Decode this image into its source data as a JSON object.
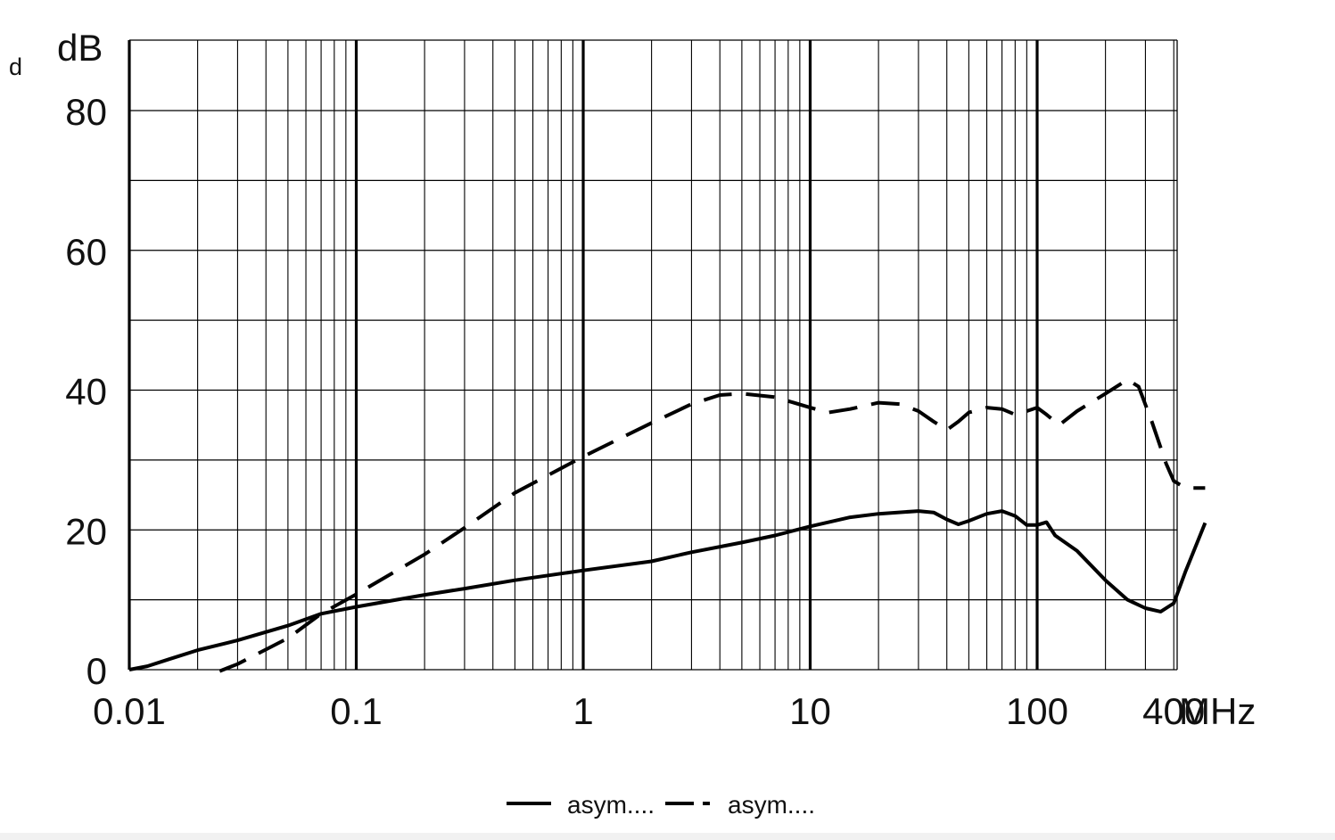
{
  "chart_data": {
    "type": "line",
    "corner_label": "d",
    "ylabel": "dB",
    "xlabel": "MHz",
    "x_scale": "log",
    "xlim": [
      0.01,
      600
    ],
    "ylim": [
      0,
      90
    ],
    "grid": true,
    "legend_placement": "bottom-center",
    "x_tick_labels": [
      {
        "value": 0.01,
        "label": "0.01"
      },
      {
        "value": 0.1,
        "label": "0.1"
      },
      {
        "value": 1,
        "label": "1"
      },
      {
        "value": 10,
        "label": "10"
      },
      {
        "value": 100,
        "label": "100"
      },
      {
        "value": 400,
        "label": "400"
      }
    ],
    "y_tick_labels": [
      {
        "value": 0,
        "label": "0"
      },
      {
        "value": 20,
        "label": "20"
      },
      {
        "value": 40,
        "label": "40"
      },
      {
        "value": 60,
        "label": "60"
      },
      {
        "value": 80,
        "label": "80"
      }
    ],
    "series": [
      {
        "name": "asym....",
        "style": "solid",
        "color": "#000000",
        "points": [
          [
            0.01,
            0
          ],
          [
            0.012,
            0.5
          ],
          [
            0.015,
            1.5
          ],
          [
            0.02,
            2.8
          ],
          [
            0.03,
            4.2
          ],
          [
            0.05,
            6.3
          ],
          [
            0.07,
            8.0
          ],
          [
            0.1,
            9.0
          ],
          [
            0.2,
            10.7
          ],
          [
            0.3,
            11.6
          ],
          [
            0.5,
            12.8
          ],
          [
            1,
            14.2
          ],
          [
            2,
            15.5
          ],
          [
            3,
            16.8
          ],
          [
            5,
            18.2
          ],
          [
            7,
            19.2
          ],
          [
            10,
            20.5
          ],
          [
            15,
            21.8
          ],
          [
            20,
            22.3
          ],
          [
            30,
            22.7
          ],
          [
            35,
            22.5
          ],
          [
            40,
            21.5
          ],
          [
            45,
            20.8
          ],
          [
            50,
            21.3
          ],
          [
            60,
            22.3
          ],
          [
            70,
            22.7
          ],
          [
            80,
            22.0
          ],
          [
            90,
            20.7
          ],
          [
            100,
            20.7
          ],
          [
            110,
            21.1
          ],
          [
            120,
            19.2
          ],
          [
            150,
            17.0
          ],
          [
            200,
            12.8
          ],
          [
            250,
            10.0
          ],
          [
            300,
            8.8
          ],
          [
            350,
            8.3
          ],
          [
            400,
            9.5
          ],
          [
            450,
            14.0
          ],
          [
            550,
            21.0
          ]
        ]
      },
      {
        "name": "asym....",
        "style": "dashed",
        "color": "#000000",
        "points": [
          [
            0.025,
            -0.2
          ],
          [
            0.03,
            0.8
          ],
          [
            0.05,
            4.5
          ],
          [
            0.07,
            8.0
          ],
          [
            0.1,
            10.8
          ],
          [
            0.2,
            16.5
          ],
          [
            0.3,
            20.3
          ],
          [
            0.5,
            25.3
          ],
          [
            1,
            30.5
          ],
          [
            2,
            35.3
          ],
          [
            3,
            38.0
          ],
          [
            4,
            39.3
          ],
          [
            5,
            39.5
          ],
          [
            7,
            39.0
          ],
          [
            10,
            37.5
          ],
          [
            12,
            36.8
          ],
          [
            15,
            37.3
          ],
          [
            20,
            38.2
          ],
          [
            25,
            38.0
          ],
          [
            30,
            37.0
          ],
          [
            35,
            35.5
          ],
          [
            40,
            34.3
          ],
          [
            45,
            35.5
          ],
          [
            50,
            36.8
          ],
          [
            60,
            37.5
          ],
          [
            70,
            37.3
          ],
          [
            80,
            36.5
          ],
          [
            90,
            37.0
          ],
          [
            100,
            37.5
          ],
          [
            110,
            36.5
          ],
          [
            125,
            35.0
          ],
          [
            150,
            37.0
          ],
          [
            200,
            39.5
          ],
          [
            250,
            41.5
          ],
          [
            280,
            40.5
          ],
          [
            320,
            35.5
          ],
          [
            370,
            29.5
          ],
          [
            400,
            27.0
          ],
          [
            450,
            26.0
          ],
          [
            550,
            26.0
          ]
        ]
      }
    ]
  }
}
